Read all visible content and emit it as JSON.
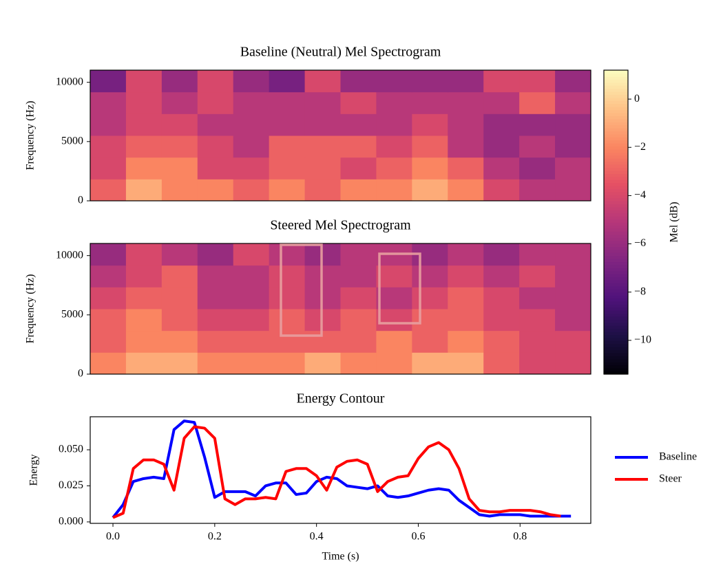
{
  "chart_data": [
    {
      "type": "heatmap",
      "title": "Baseline (Neutral) Mel Spectrogram",
      "ylabel": "Frequency (Hz)",
      "ylim": [
        0,
        11025
      ],
      "yticks": [
        0,
        5000,
        10000
      ],
      "z": [
        [
          -3,
          -1,
          -2,
          -2,
          -3,
          -2,
          -3,
          -2,
          -2,
          -1,
          -2,
          -4,
          -5,
          -5
        ],
        [
          -4,
          -2,
          -2,
          -4,
          -4,
          -3,
          -3,
          -4,
          -3,
          -2,
          -3,
          -5,
          -6,
          -5
        ],
        [
          -4,
          -3,
          -3,
          -4,
          -5,
          -3,
          -3,
          -3,
          -4,
          -3,
          -5,
          -6,
          -5,
          -6
        ],
        [
          -5,
          -4,
          -4,
          -5,
          -5,
          -5,
          -5,
          -5,
          -5,
          -4,
          -5,
          -6,
          -6,
          -6
        ],
        [
          -5,
          -4,
          -5,
          -4,
          -5,
          -5,
          -5,
          -4,
          -5,
          -5,
          -5,
          -5,
          -3,
          -5
        ],
        [
          -7,
          -4,
          -6,
          -4,
          -6,
          -7,
          -4,
          -6,
          -6,
          -6,
          -6,
          -4,
          -4,
          -6
        ]
      ],
      "colorbar": {
        "label": "Mel (dB)",
        "clim": [
          -11.4,
          1.2
        ],
        "ticks": [
          {
            "value": 0,
            "label": "0"
          },
          {
            "value": -2,
            "label": "−2"
          },
          {
            "value": -4,
            "label": "−4"
          },
          {
            "value": -6,
            "label": "−6"
          },
          {
            "value": -8,
            "label": "−8"
          },
          {
            "value": -10,
            "label": "−10"
          }
        ]
      }
    },
    {
      "type": "heatmap",
      "title": "Steered Mel Spectrogram",
      "ylabel": "Frequency (Hz)",
      "ylim": [
        0,
        11025
      ],
      "yticks": [
        0,
        5000,
        10000
      ],
      "z": [
        [
          -2,
          -1,
          -1,
          -2,
          -2,
          -2,
          -1,
          -2,
          -2,
          -1,
          -1,
          -3,
          -4,
          -4
        ],
        [
          -3,
          -2,
          -2,
          -3,
          -3,
          -3,
          -3,
          -3,
          -2,
          -3,
          -2,
          -3,
          -4,
          -4
        ],
        [
          -3,
          -2,
          -3,
          -4,
          -4,
          -3,
          -4,
          -3,
          -4,
          -3,
          -3,
          -4,
          -4,
          -5
        ],
        [
          -4,
          -3,
          -3,
          -5,
          -5,
          -4,
          -5,
          -4,
          -5,
          -4,
          -3,
          -4,
          -5,
          -5
        ],
        [
          -5,
          -4,
          -3,
          -5,
          -5,
          -4,
          -5,
          -5,
          -4,
          -5,
          -4,
          -5,
          -4,
          -5
        ],
        [
          -6,
          -4,
          -5,
          -6,
          -4,
          -5,
          -6,
          -5,
          -5,
          -6,
          -5,
          -6,
          -5,
          -5
        ]
      ]
    },
    {
      "type": "line",
      "title": "Energy Contour",
      "xlabel": "Time (s)",
      "ylabel": "Energy",
      "x": [
        0,
        0.02,
        0.04,
        0.06,
        0.08,
        0.1,
        0.12,
        0.14,
        0.16,
        0.18,
        0.2,
        0.22,
        0.24,
        0.26,
        0.28,
        0.3,
        0.32,
        0.34,
        0.36,
        0.38,
        0.4,
        0.42,
        0.44,
        0.46,
        0.48,
        0.5,
        0.52,
        0.54,
        0.56,
        0.58,
        0.6,
        0.62,
        0.64,
        0.66,
        0.68,
        0.7,
        0.72,
        0.74,
        0.76,
        0.78,
        0.8,
        0.82,
        0.84,
        0.86,
        0.88,
        0.9
      ],
      "series": [
        {
          "name": "Baseline",
          "color": "#0000ff",
          "values": [
            0.003,
            0.012,
            0.028,
            0.03,
            0.031,
            0.03,
            0.064,
            0.07,
            0.069,
            0.045,
            0.017,
            0.021,
            0.021,
            0.021,
            0.018,
            0.025,
            0.027,
            0.027,
            0.019,
            0.02,
            0.028,
            0.031,
            0.03,
            0.025,
            0.024,
            0.023,
            0.025,
            0.018,
            0.017,
            0.018,
            0.02,
            0.022,
            0.023,
            0.022,
            0.015,
            0.01,
            0.005,
            0.004,
            0.005,
            0.005,
            0.005,
            0.004,
            0.004,
            0.004,
            0.004,
            0.004
          ]
        },
        {
          "name": "Steer",
          "color": "#ff0000",
          "values": [
            0.003,
            0.006,
            0.037,
            0.043,
            0.043,
            0.04,
            0.022,
            0.058,
            0.066,
            0.065,
            0.058,
            0.016,
            0.012,
            0.016,
            0.016,
            0.017,
            0.016,
            0.035,
            0.037,
            0.037,
            0.032,
            0.022,
            0.038,
            0.042,
            0.043,
            0.04,
            0.021,
            0.028,
            0.031,
            0.032,
            0.044,
            0.052,
            0.055,
            0.05,
            0.037,
            0.016,
            0.008,
            0.007,
            0.007,
            0.008,
            0.008,
            0.008,
            0.007,
            0.005,
            0.004,
            null
          ]
        }
      ],
      "xlim": [
        -0.0447,
        0.939
      ],
      "ylim": [
        -0.001,
        0.0729
      ],
      "xticks": [
        {
          "value": 0,
          "label": "0.0"
        },
        {
          "value": 0.2,
          "label": "0.2"
        },
        {
          "value": 0.4,
          "label": "0.4"
        },
        {
          "value": 0.6,
          "label": "0.6"
        },
        {
          "value": 0.8,
          "label": "0.8"
        }
      ],
      "yticks": [
        {
          "value": 0,
          "label": "0.000"
        },
        {
          "value": 0.025,
          "label": "0.025"
        },
        {
          "value": 0.05,
          "label": "0.050"
        }
      ],
      "legend": "outside-right"
    }
  ]
}
